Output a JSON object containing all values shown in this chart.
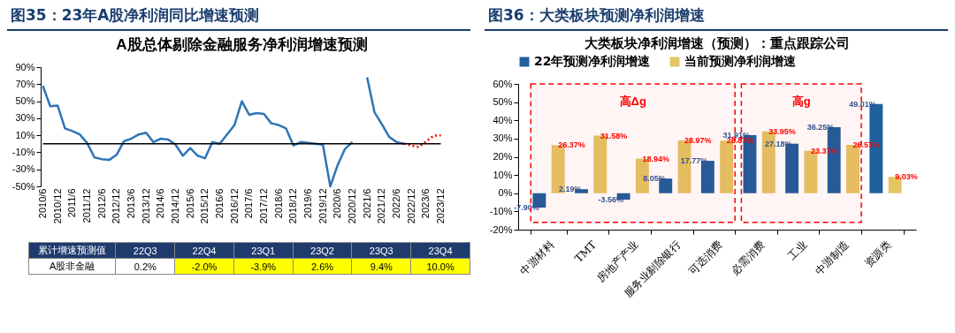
{
  "chart_data": [
    {
      "type": "line",
      "title": "图35：23年A股净利润同比增速预测",
      "subtitle": "A股总体剔除金融服务净利润增速预测",
      "categories": [
        "2010/6",
        null,
        "2010/12",
        null,
        "2011/6",
        null,
        "2011/12",
        null,
        "2012/6",
        null,
        "2012/12",
        null,
        "2013/6",
        null,
        "2013/12",
        null,
        "2014/6",
        null,
        "2014/12",
        null,
        "2015/6",
        null,
        "2015/12",
        null,
        "2016/6",
        null,
        "2016/12",
        null,
        "2017/6",
        null,
        "2017/12",
        null,
        "2018/6",
        null,
        "2018/12",
        null,
        "2019/6",
        null,
        "2019/12",
        null,
        "2020/6",
        null,
        "2020/12",
        null,
        "2021/6",
        null,
        "2021/12",
        null,
        "2022/6",
        null,
        "2022/12",
        null,
        "2023/6",
        null,
        "2023/12"
      ],
      "series": [
        {
          "color": "#2e75b6",
          "line_style": "solid",
          "values": [
            68,
            44,
            45,
            18,
            15,
            11,
            1,
            -16,
            -18,
            -19,
            -13,
            3,
            6,
            11,
            13,
            2,
            6,
            5,
            -1,
            -14,
            -5,
            -14,
            -17,
            2,
            0,
            11,
            22,
            50,
            34,
            36,
            35,
            24,
            22,
            18,
            -2,
            2,
            1,
            0,
            -1,
            -50,
            -25,
            -6,
            2,
            null,
            78,
            37,
            23,
            8,
            2,
            0,
            null,
            null,
            null,
            null,
            null
          ]
        },
        {
          "color": "#ff0000",
          "line_style": "dotted",
          "values": [
            null,
            null,
            null,
            null,
            null,
            null,
            null,
            null,
            null,
            null,
            null,
            null,
            null,
            null,
            null,
            null,
            null,
            null,
            null,
            null,
            null,
            null,
            null,
            null,
            null,
            null,
            null,
            null,
            null,
            null,
            null,
            null,
            null,
            null,
            null,
            null,
            null,
            null,
            null,
            null,
            null,
            null,
            null,
            null,
            null,
            null,
            null,
            null,
            null,
            0.2,
            -2.0,
            -3.9,
            2.6,
            9.4,
            10.0
          ]
        }
      ],
      "ylim": [
        -50,
        90
      ],
      "yticks": [
        {
          "value": 90,
          "label": "90%"
        },
        {
          "value": 70,
          "label": "70%"
        },
        {
          "value": 50,
          "label": "50%"
        },
        {
          "value": 30,
          "label": "30%"
        },
        {
          "value": 10,
          "label": "10%"
        },
        {
          "value": -10,
          "label": "-10%"
        },
        {
          "value": -30,
          "label": "-30%"
        },
        {
          "value": -50,
          "label": "-50%"
        }
      ],
      "ref_lines": [
        {
          "axis": "y",
          "value": 0,
          "color": "#000000"
        }
      ],
      "grid": false,
      "legend": false,
      "marker": "none",
      "annotations": [
        "累计增速预测值",
        "A股非金融",
        "22Q3",
        "22Q4",
        "23Q1",
        "23Q2",
        "23Q3",
        "23Q4",
        "0.2%",
        "-2.0%",
        "-3.9%",
        "2.6%",
        "9.4%",
        "10.0%"
      ]
    },
    {
      "type": "bar",
      "title": "图36：大类板块预测净利润增速",
      "subtitle": "大类板块净利润增速（预测）：重点跟踪公司",
      "categories": [
        "中游材料",
        "TMT",
        "房地产产业",
        "服务业剔除银行",
        "可选消费",
        "必需消费",
        "工业",
        "中游制造",
        "资源类"
      ],
      "series": [
        {
          "name": "22年预测净利润增速",
          "color": "#1f5f9e",
          "values": [
            -7.9,
            2.19,
            -3.56,
            8.05,
            17.77,
            31.91,
            27.18,
            36.25,
            49.01
          ],
          "value_labels": [
            "-7.90%",
            "2.19%",
            "-3.56%",
            "8.05%",
            "17.77%",
            "31.91%",
            "27.18%",
            "36.25%",
            "49.01%"
          ]
        },
        {
          "name": "当前预测净利润增速",
          "color": "#e3c565",
          "values": [
            26.37,
            31.58,
            18.94,
            28.97,
            28.87,
            33.95,
            23.37,
            26.57,
            9.03
          ],
          "value_labels": [
            "26.37%",
            "31.58%",
            "18.94%",
            "28.97%",
            "28.87%",
            "33.95%",
            "23.37%",
            "26.57%",
            "9.03%"
          ]
        }
      ],
      "ylim": [
        -20,
        60
      ],
      "yticks": [
        {
          "value": 60,
          "label": "60%"
        },
        {
          "value": 50,
          "label": "50%"
        },
        {
          "value": 40,
          "label": "40%"
        },
        {
          "value": 30,
          "label": "30%"
        },
        {
          "value": 20,
          "label": "20%"
        },
        {
          "value": 10,
          "label": "10%"
        },
        {
          "value": 0,
          "label": "0%"
        },
        {
          "value": -10,
          "label": "-10%"
        },
        {
          "value": -20,
          "label": "-20%"
        }
      ],
      "bands": [
        {
          "axis": "x",
          "from": "中游材料",
          "to": "可选消费",
          "label": "高Δg",
          "color": "#ff0000"
        },
        {
          "axis": "x",
          "from": "必需消费",
          "to": "中游制造",
          "label": "高g",
          "color": "#ff0000"
        }
      ],
      "grid": false,
      "legend": "top"
    }
  ]
}
